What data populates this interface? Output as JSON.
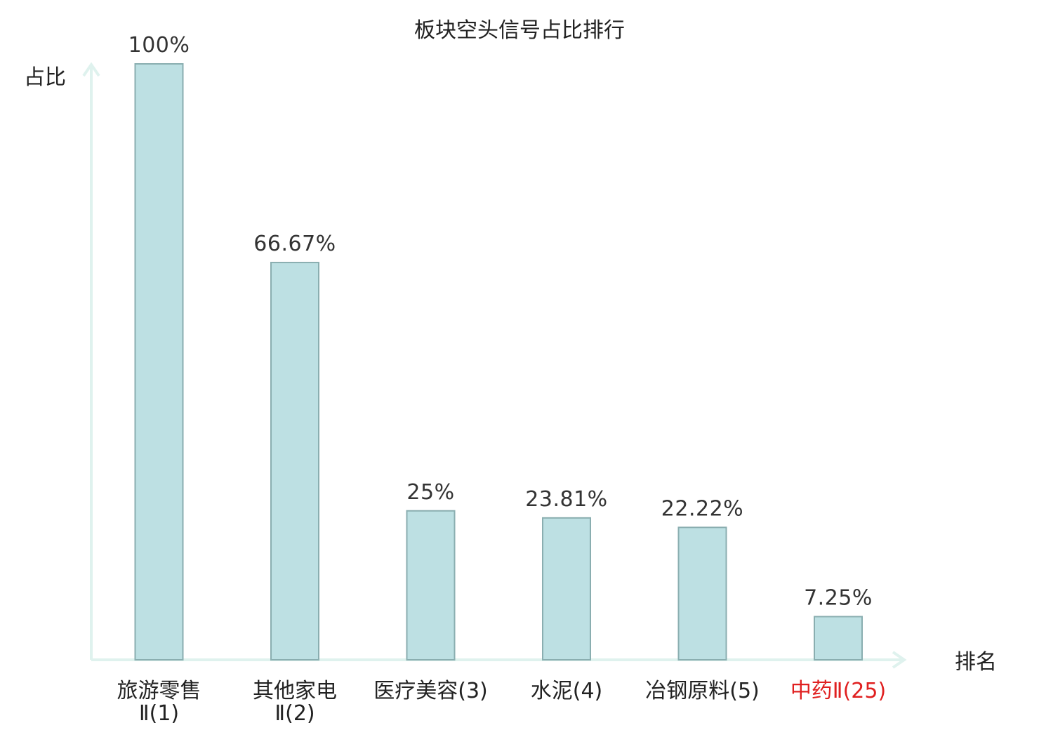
{
  "chart_data": {
    "type": "bar",
    "title": "板块空头信号占比排行",
    "ylabel": "占比",
    "xlabel": "排名",
    "ylim": [
      0,
      100
    ],
    "grid": false,
    "categories": [
      {
        "name": "旅游零售Ⅱ",
        "rank": "(1)",
        "lines": [
          "旅游零售",
          "Ⅱ(1)"
        ],
        "highlight": false
      },
      {
        "name": "其他家电Ⅱ",
        "rank": "(2)",
        "lines": [
          "其他家电",
          "Ⅱ(2)"
        ],
        "highlight": false
      },
      {
        "name": "医疗美容",
        "rank": "(3)",
        "lines": [
          "医疗美容(3)"
        ],
        "highlight": false
      },
      {
        "name": "水泥",
        "rank": "(4)",
        "lines": [
          "水泥(4)"
        ],
        "highlight": false
      },
      {
        "name": "冶钢原料",
        "rank": "(5)",
        "lines": [
          "冶钢原料(5)"
        ],
        "highlight": false
      },
      {
        "name": "中药Ⅱ",
        "rank": "(25)",
        "lines": [
          "中药Ⅱ(25)"
        ],
        "highlight": true
      }
    ],
    "values": [
      100,
      66.67,
      25,
      23.81,
      22.22,
      7.25
    ],
    "value_labels": [
      "100%",
      "66.67%",
      "25%",
      "23.81%",
      "22.22%",
      "7.25%"
    ],
    "colors": {
      "bar_fill": "#bde0e3",
      "bar_stroke": "#8aaeb0",
      "axis": "#dff2ee",
      "highlight_text": "#e02020"
    }
  }
}
